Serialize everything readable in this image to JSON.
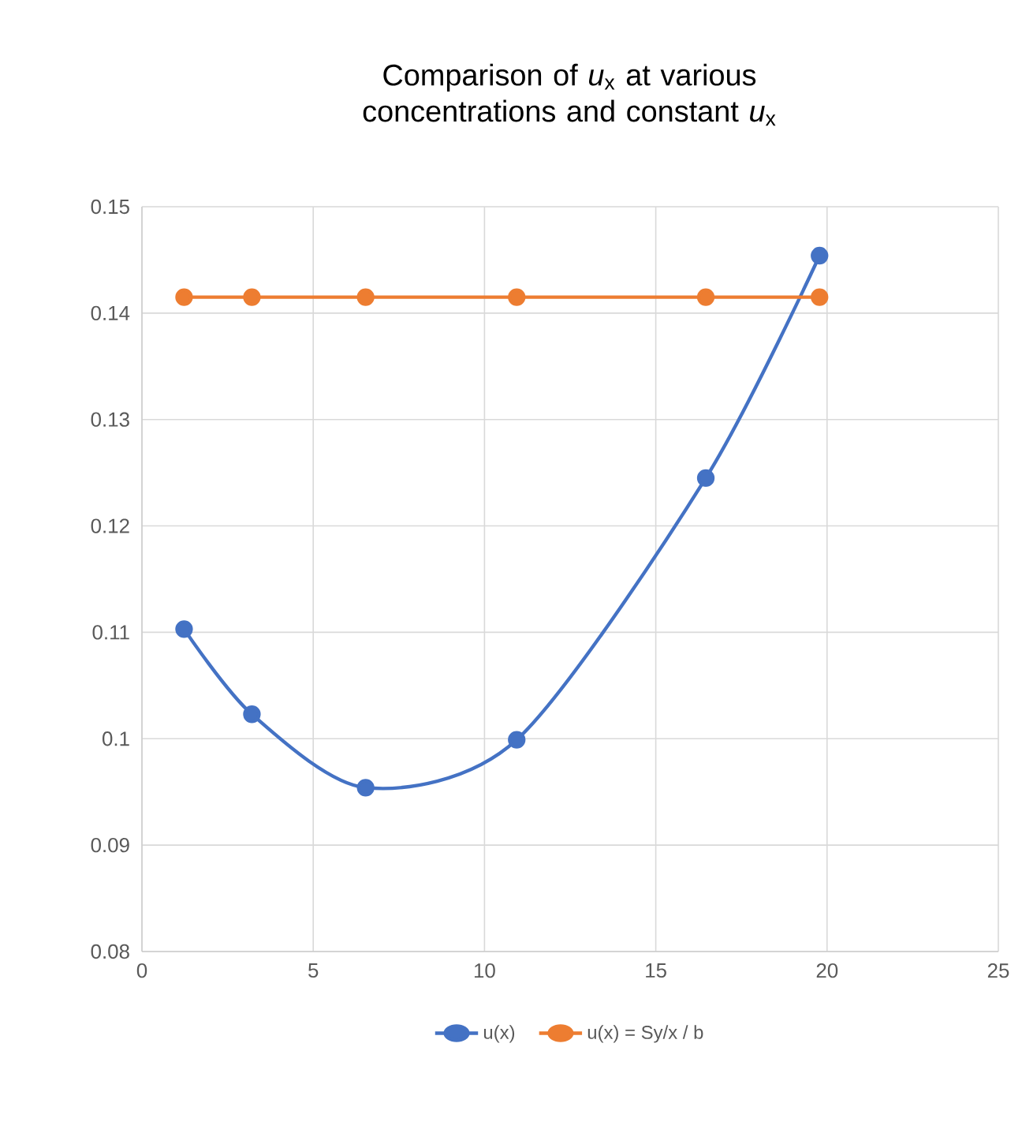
{
  "chart_data": {
    "type": "line",
    "title": "Comparison of *u*$_{x}$ at various concentrations and constant *u*$_{x}$",
    "series": [
      {
        "name": "u(x)",
        "color": "#4472c4",
        "x": [
          1.23,
          3.21,
          6.53,
          10.94,
          16.46,
          19.78
        ],
        "values": [
          0.1103,
          0.1023,
          0.0954,
          0.0999,
          0.1245,
          0.1454
        ]
      },
      {
        "name": "u(x) = Sy/x / b",
        "color": "#ed7d31",
        "x": [
          1.23,
          3.21,
          6.53,
          10.94,
          16.46,
          19.78
        ],
        "values": [
          0.1415,
          0.1415,
          0.1415,
          0.1415,
          0.1415,
          0.1415
        ]
      }
    ],
    "xlim": [
      0,
      25
    ],
    "xticks": [
      0,
      5,
      10,
      15,
      20,
      25
    ],
    "ylim": [
      0.08,
      0.15
    ],
    "yticks": [
      0.08,
      0.09,
      0.1,
      0.11,
      0.12,
      0.13,
      0.14,
      0.15
    ],
    "grid": true,
    "legend": "bottom",
    "marker": "circle",
    "line_style": "solid"
  }
}
